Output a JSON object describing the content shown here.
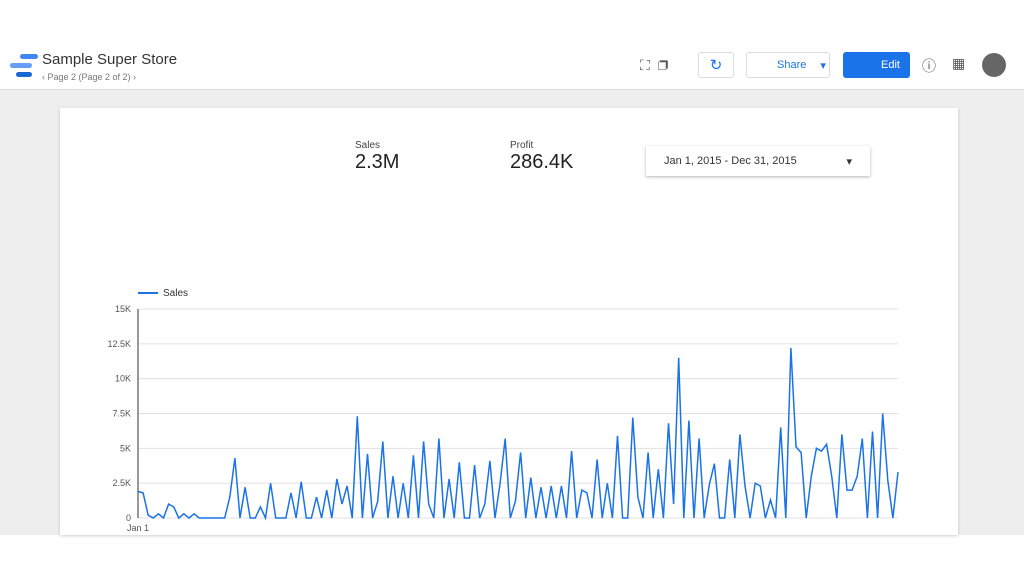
{
  "header": {
    "title": "Sample Super Store",
    "page": "Page 2 (Page 2 of 2)",
    "share": "Share",
    "edit": "Edit"
  },
  "scorecards": [
    {
      "label": "Sales",
      "value": "2.3M"
    },
    {
      "label": "Profit",
      "value": "286.4K"
    }
  ],
  "date_range": "Jan 1, 2015 - Dec 31, 2015",
  "chart_data": {
    "type": "line",
    "categories": [
      "Jan 1",
      null,
      null,
      null,
      null,
      null,
      null,
      null,
      null,
      null,
      null,
      null,
      null,
      null,
      null,
      null,
      null,
      null,
      null,
      null,
      null,
      null,
      null,
      null,
      null,
      null,
      null,
      null,
      null,
      null,
      null,
      null,
      null,
      null,
      null,
      null,
      null,
      null,
      null,
      null,
      null,
      null,
      null,
      null,
      null,
      null,
      null,
      null,
      null,
      null,
      null,
      null,
      null,
      null,
      null,
      null,
      null,
      null,
      null,
      null,
      null,
      null,
      null,
      null,
      null,
      null,
      null,
      null,
      null,
      null,
      null,
      null,
      null,
      null,
      null,
      null,
      null,
      null,
      null,
      null,
      null,
      null,
      null,
      null,
      null,
      null,
      null,
      null,
      null,
      null,
      null,
      null,
      null,
      null,
      null,
      null,
      null,
      null,
      null,
      null,
      null,
      null,
      null,
      null,
      null,
      null,
      null,
      null,
      null,
      null,
      null,
      null,
      null,
      null,
      null,
      null,
      null,
      null,
      null,
      null,
      null,
      null,
      null,
      null,
      null,
      null,
      null,
      null,
      null,
      null,
      null,
      null,
      null,
      null,
      null,
      null,
      null,
      null,
      null,
      null,
      null,
      null,
      null,
      null,
      null,
      null,
      null,
      null,
      null,
      null
    ],
    "series": [
      {
        "name": "Sales",
        "color": "#1a73e8",
        "values": [
          1900,
          1800,
          200,
          0,
          300,
          0,
          1000,
          800,
          0,
          300,
          0,
          300,
          0,
          0,
          0,
          0,
          0,
          0,
          1500,
          4300,
          0,
          2200,
          0,
          0,
          800,
          0,
          2500,
          0,
          0,
          0,
          1800,
          0,
          2600,
          0,
          0,
          1500,
          0,
          2000,
          0,
          2800,
          1000,
          2300,
          0,
          7300,
          0,
          4600,
          0,
          1200,
          5500,
          0,
          3000,
          0,
          2500,
          0,
          4500,
          0,
          5500,
          1000,
          0,
          5700,
          0,
          2800,
          0,
          4000,
          0,
          0,
          3800,
          0,
          1000,
          4100,
          0,
          2500,
          5700,
          0,
          1200,
          4700,
          0,
          2900,
          0,
          2200,
          0,
          2300,
          0,
          2300,
          0,
          4800,
          0,
          2000,
          1800,
          0,
          4200,
          0,
          2500,
          0,
          5900,
          0,
          0,
          7200,
          1500,
          0,
          4700,
          0,
          3500,
          0,
          6800,
          1000,
          11500,
          0,
          7000,
          0,
          5700,
          0,
          2400,
          3900,
          0,
          0,
          4200,
          0,
          6000,
          2300,
          0,
          2500,
          2300,
          0,
          1300,
          0,
          6500,
          0,
          12200,
          5100,
          4700,
          0,
          3000,
          5000,
          4800,
          5300,
          3000,
          0,
          6000,
          2000,
          2000,
          3000,
          5700,
          0,
          6200,
          0,
          7500,
          2700,
          0,
          3300
        ]
      }
    ],
    "ylim": [
      0,
      15000
    ],
    "yticks": [
      0,
      {
        "value": 2500,
        "label": "2.5K"
      },
      {
        "value": 5000,
        "label": "5K"
      },
      {
        "value": 7500,
        "label": "7.5K"
      },
      {
        "value": 10000,
        "label": "10K"
      },
      {
        "value": 12500,
        "label": "12.5K"
      },
      {
        "value": 15000,
        "label": "15K"
      }
    ],
    "grid": true
  }
}
